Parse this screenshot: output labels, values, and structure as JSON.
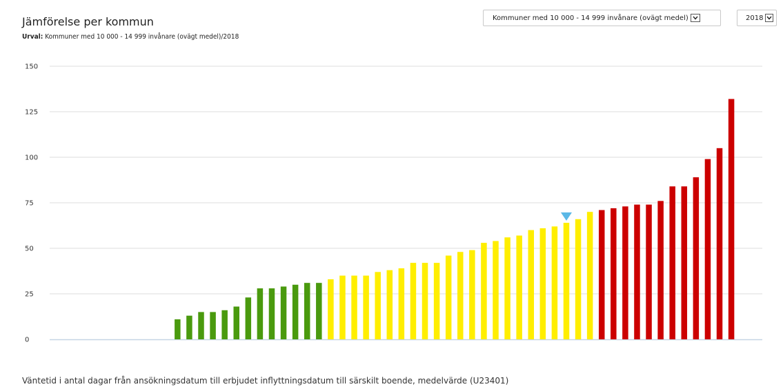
{
  "header": {
    "title": "Jämförelse per kommun",
    "subtitle_label": "Urval:",
    "subtitle_value": "Kommuner med 10 000 - 14 999 invånare (ovägt medel)/2018"
  },
  "filters": {
    "group_selected": "Kommuner med 10 000 - 14 999 invånare (ovägt medel)",
    "year_selected": "2018"
  },
  "footer": {
    "description": "Väntetid i antal dagar från ansökningsdatum till erbjudet inflyttningsdatum till särskilt boende, medelvärde (U23401)"
  },
  "colors": {
    "green": "#4a9a0e",
    "yellow": "#ffee00",
    "red": "#cc0000",
    "marker": "#5bb8e6",
    "grid": "#dddddd",
    "baseline": "#c5d5e4"
  },
  "chart_data": {
    "type": "bar",
    "title": "Jämförelse per kommun",
    "ylim": [
      0,
      150
    ],
    "yticks": [
      0,
      25,
      50,
      75,
      100,
      125,
      150
    ],
    "grid": true,
    "values": [
      0,
      0,
      0,
      0,
      0,
      0,
      0,
      0,
      0,
      0,
      0,
      0,
      0,
      11,
      13,
      15,
      15,
      16,
      18,
      23,
      28,
      28,
      29,
      30,
      31,
      31,
      33,
      35,
      35,
      35,
      37,
      38,
      39,
      42,
      42,
      42,
      46,
      48,
      49,
      53,
      54,
      56,
      57,
      60,
      61,
      62,
      64,
      66,
      70,
      71,
      72,
      73,
      74,
      74,
      76,
      84,
      84,
      89,
      99,
      105,
      132
    ],
    "color_classes": [
      "none",
      "none",
      "none",
      "none",
      "none",
      "none",
      "none",
      "none",
      "none",
      "none",
      "none",
      "none",
      "none",
      "green",
      "green",
      "green",
      "green",
      "green",
      "green",
      "green",
      "green",
      "green",
      "green",
      "green",
      "green",
      "green",
      "yellow",
      "yellow",
      "yellow",
      "yellow",
      "yellow",
      "yellow",
      "yellow",
      "yellow",
      "yellow",
      "yellow",
      "yellow",
      "yellow",
      "yellow",
      "yellow",
      "yellow",
      "yellow",
      "yellow",
      "yellow",
      "yellow",
      "yellow",
      "yellow",
      "yellow",
      "yellow",
      "red",
      "red",
      "red",
      "red",
      "red",
      "red",
      "red",
      "red",
      "red",
      "red",
      "red",
      "red"
    ],
    "highlight_index": 46,
    "marker_icon": "triangle-down-marker"
  }
}
